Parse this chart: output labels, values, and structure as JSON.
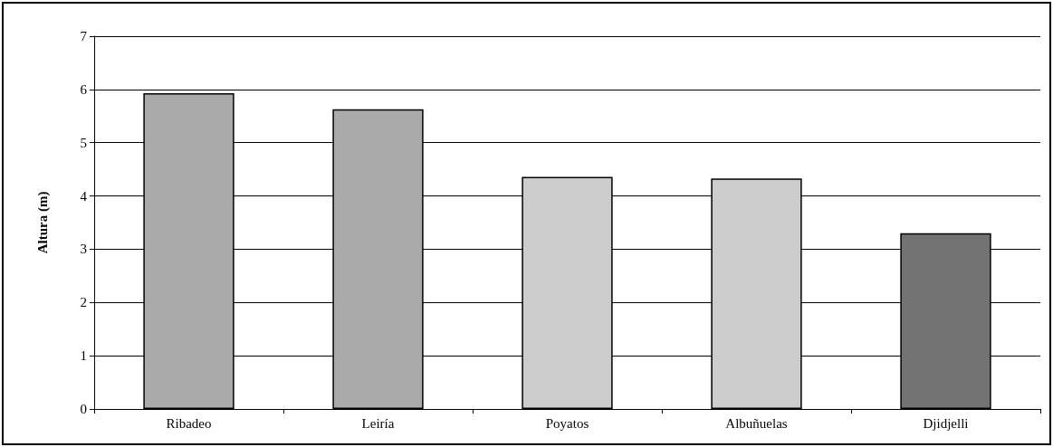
{
  "chart_data": {
    "type": "bar",
    "ylabel": "Altura (m)",
    "categories": [
      "Ribadeo",
      "Leiría",
      "Poyatos",
      "Albuñuelas",
      "Djidjelli"
    ],
    "values": [
      5.93,
      5.63,
      4.36,
      4.33,
      3.3
    ],
    "colors": [
      "#aaaaaa",
      "#aaaaaa",
      "#cccccc",
      "#cccccc",
      "#737373"
    ],
    "ylim": [
      0,
      7
    ],
    "yticks": [
      0,
      1,
      2,
      3,
      4,
      5,
      6,
      7
    ],
    "grid": "y"
  }
}
